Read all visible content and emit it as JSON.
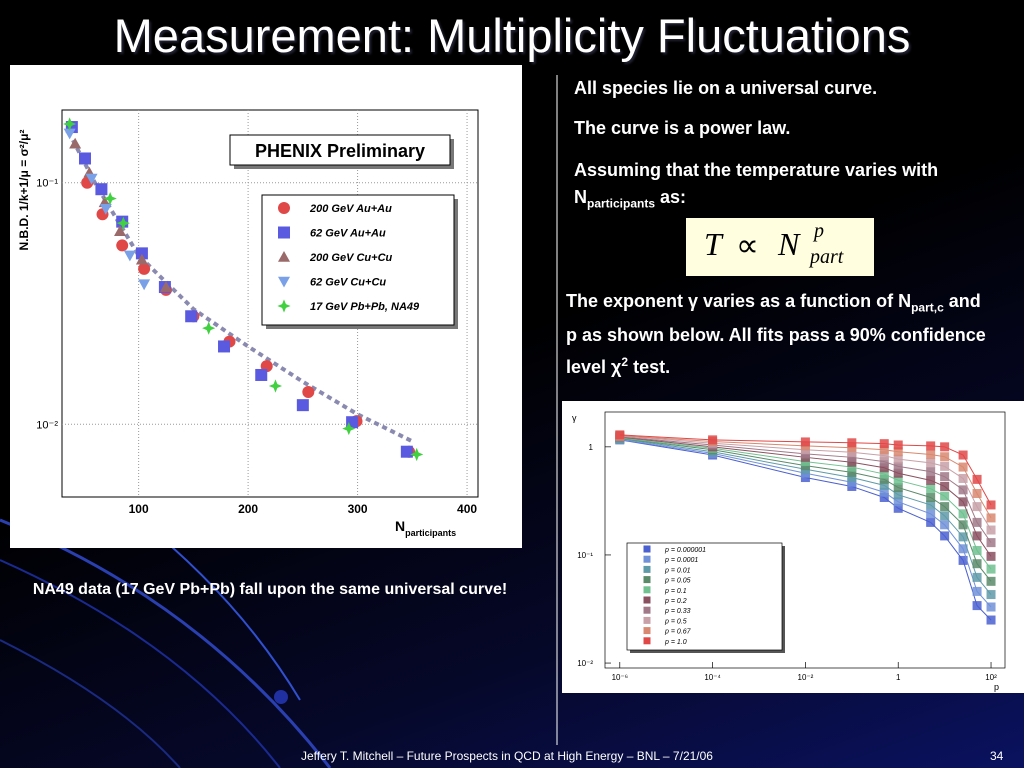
{
  "slide": {
    "title": "Measurement: Multiplicity Fluctuations",
    "bullets": [
      [
        {
          "text": "All species lie on a universal curve."
        }
      ],
      [
        {
          "text": "The curve is a power law."
        }
      ],
      [
        {
          "text": "Assuming that the temperature varies with N"
        },
        {
          "sub": "participants"
        },
        {
          "text": " as:"
        }
      ]
    ],
    "formula": {
      "lhs": "T",
      "op": "∝",
      "base": "N",
      "sup": "p",
      "sub": "part"
    },
    "paragraph": [
      {
        "text": "The exponent γ varies as a function of N"
      },
      {
        "sub": "part,c"
      },
      {
        "text": " and p as shown below. All fits pass a 90% confidence level χ"
      },
      {
        "sup": "2"
      },
      {
        "text": " test."
      }
    ],
    "caption": "NA49 data (17 GeV Pb+Pb) fall upon the same universal curve!",
    "footer": "Jeffery T. Mitchell – Future Prospects in QCD at High Energy – BNL – 7/21/06",
    "page_number": "34"
  },
  "chart_data": [
    {
      "type": "scatter",
      "annotation": "PHENIX Preliminary",
      "y_label": "N.B.D. 1/k+1/μ = σ²/μ²",
      "x_label": [
        {
          "text": "N"
        },
        {
          "sub": "participants"
        }
      ],
      "xlim": [
        30,
        410
      ],
      "xticks": [
        100,
        200,
        300,
        400
      ],
      "ylim": [
        0.005,
        0.2
      ],
      "yticks": [
        {
          "value": 0.1,
          "label": "10⁻¹"
        },
        {
          "value": 0.01,
          "label": "10⁻²"
        }
      ],
      "log_y": true,
      "grid": true,
      "series": [
        {
          "name": "200 GeV Au+Au",
          "color": "#e04848",
          "marker": "circle",
          "x": [
            53,
            67,
            85,
            105,
            125,
            150,
            183,
            217,
            255,
            299,
            347
          ],
          "values": [
            0.1,
            0.074,
            0.055,
            0.044,
            0.036,
            0.028,
            0.022,
            0.0174,
            0.0136,
            0.0103,
            0.0077
          ]
        },
        {
          "name": "62 GeV Au+Au",
          "color": "#5a5ae0",
          "marker": "square",
          "x": [
            39,
            51,
            66,
            85,
            103,
            124,
            148,
            178,
            212,
            250,
            295,
            345
          ],
          "values": [
            0.17,
            0.126,
            0.094,
            0.069,
            0.051,
            0.037,
            0.028,
            0.021,
            0.016,
            0.012,
            0.0102,
            0.0077
          ]
        },
        {
          "name": "200 GeV Cu+Cu",
          "color": "#9a6a6a",
          "marker": "triangle",
          "x": [
            42,
            55,
            69,
            83,
            103,
            125
          ],
          "values": [
            0.145,
            0.11,
            0.083,
            0.063,
            0.048,
            0.037
          ]
        },
        {
          "name": "62 GeV Cu+Cu",
          "color": "#7aa0e8",
          "marker": "down",
          "x": [
            37,
            57,
            70,
            92,
            105
          ],
          "values": [
            0.16,
            0.104,
            0.078,
            0.05,
            0.038
          ]
        },
        {
          "name": "17 GeV Pb+Pb, NA49",
          "color": "#40d040",
          "marker": "star",
          "x": [
            37,
            74,
            86,
            164,
            225,
            292,
            354
          ],
          "values": [
            0.175,
            0.086,
            0.068,
            0.025,
            0.0144,
            0.0096,
            0.0075
          ]
        }
      ],
      "fit": {
        "color": "#8a8ab0",
        "x": [
          40,
          60,
          100,
          150,
          200,
          250,
          300,
          350
        ],
        "values": [
          0.15,
          0.1,
          0.05,
          0.03,
          0.021,
          0.015,
          0.011,
          0.0085
        ]
      }
    },
    {
      "type": "line",
      "y_label": "γ",
      "x_label": "p",
      "log_x": true,
      "log_y": true,
      "xlim": [
        4.8e-07,
        200
      ],
      "xticks": [
        {
          "value": 1e-06,
          "label": "10⁻⁶"
        },
        {
          "value": 0.0001,
          "label": "10⁻⁴"
        },
        {
          "value": 0.01,
          "label": "10⁻²"
        },
        1,
        {
          "value": 100,
          "label": "10²"
        }
      ],
      "ylim": [
        0.009,
        2.1
      ],
      "yticks": [
        {
          "value": 0.01,
          "label": "10⁻²"
        },
        {
          "value": 0.1,
          "label": "10⁻¹"
        },
        1
      ],
      "x": [
        1e-06,
        0.0001,
        0.01,
        0.1,
        0.5,
        1,
        5,
        10,
        25,
        50,
        100
      ],
      "series": [
        {
          "name": "p = 0.000001",
          "color": "#4a5fd0",
          "values": [
            1.16,
            0.84,
            0.52,
            0.43,
            0.34,
            0.27,
            0.2,
            0.15,
            0.089,
            0.034,
            0.025
          ]
        },
        {
          "name": "p = 0.0001",
          "color": "#7090d8",
          "values": [
            1.17,
            0.87,
            0.57,
            0.47,
            0.38,
            0.31,
            0.24,
            0.19,
            0.114,
            0.046,
            0.033
          ]
        },
        {
          "name": "p = 0.01",
          "color": "#5e9aa8",
          "values": [
            1.19,
            0.9,
            0.62,
            0.52,
            0.44,
            0.36,
            0.29,
            0.23,
            0.147,
            0.062,
            0.043
          ]
        },
        {
          "name": "p = 0.05",
          "color": "#5a8a6a",
          "values": [
            1.2,
            0.94,
            0.67,
            0.58,
            0.5,
            0.42,
            0.34,
            0.28,
            0.19,
            0.083,
            0.057
          ]
        },
        {
          "name": "p = 0.1",
          "color": "#70c090",
          "values": [
            1.21,
            0.97,
            0.73,
            0.65,
            0.56,
            0.49,
            0.41,
            0.35,
            0.24,
            0.11,
            0.074
          ]
        },
        {
          "name": "p = 0.2",
          "color": "#8a5060",
          "values": [
            1.23,
            1.0,
            0.8,
            0.72,
            0.64,
            0.57,
            0.49,
            0.43,
            0.31,
            0.15,
            0.097
          ]
        },
        {
          "name": "p = 0.33",
          "color": "#a07888",
          "values": [
            1.24,
            1.04,
            0.86,
            0.8,
            0.73,
            0.66,
            0.59,
            0.53,
            0.4,
            0.2,
            0.13
          ]
        },
        {
          "name": "p = 0.5",
          "color": "#c8a0a8",
          "values": [
            1.26,
            1.08,
            0.94,
            0.89,
            0.83,
            0.77,
            0.71,
            0.66,
            0.51,
            0.28,
            0.17
          ]
        },
        {
          "name": "p = 0.67",
          "color": "#d88870",
          "values": [
            1.27,
            1.12,
            1.02,
            0.98,
            0.94,
            0.9,
            0.85,
            0.81,
            0.65,
            0.37,
            0.22
          ]
        },
        {
          "name": "p = 1.0",
          "color": "#e04848",
          "values": [
            1.29,
            1.16,
            1.11,
            1.09,
            1.07,
            1.04,
            1.02,
            1.0,
            0.84,
            0.5,
            0.29
          ]
        }
      ]
    }
  ]
}
